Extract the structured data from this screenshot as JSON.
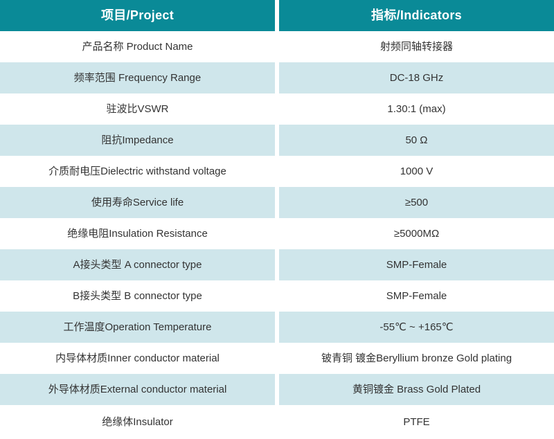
{
  "table": {
    "headers": {
      "project": "项目/Project",
      "indicators": "指标/Indicators"
    },
    "rows": [
      {
        "project": "产品名称 Product Name",
        "indicator": "射频同轴转接器"
      },
      {
        "project": "频率范围 Frequency Range",
        "indicator": "DC-18 GHz"
      },
      {
        "project": "驻波比VSWR",
        "indicator": "1.30:1 (max)"
      },
      {
        "project": "阻抗Impedance",
        "indicator": "50 Ω"
      },
      {
        "project": "介质耐电压Dielectric withstand voltage",
        "indicator": "1000 V"
      },
      {
        "project": "使用寿命Service life",
        "indicator": "≥500"
      },
      {
        "project": "绝缘电阻Insulation Resistance",
        "indicator": "≥5000MΩ"
      },
      {
        "project": "A接头类型 A connector type",
        "indicator": "SMP-Female"
      },
      {
        "project": "B接头类型 B connector type",
        "indicator": "SMP-Female"
      },
      {
        "project": "工作温度Operation Temperature",
        "indicator": "-55℃ ~ +165℃"
      },
      {
        "project": "内导体材质Inner conductor material",
        "indicator": "铍青铜 镀金Beryllium bronze Gold plating"
      },
      {
        "project": "外导体材质External conductor material",
        "indicator": "黄铜镀金 Brass Gold Plated"
      },
      {
        "project": "绝缘体Insulator",
        "indicator": "PTFE"
      }
    ],
    "colors": {
      "header_bg": "#0a8a97",
      "header_text": "#ffffff",
      "alt_row_bg": "#cfe6eb",
      "row_bg": "#ffffff",
      "body_text": "#333333"
    }
  }
}
